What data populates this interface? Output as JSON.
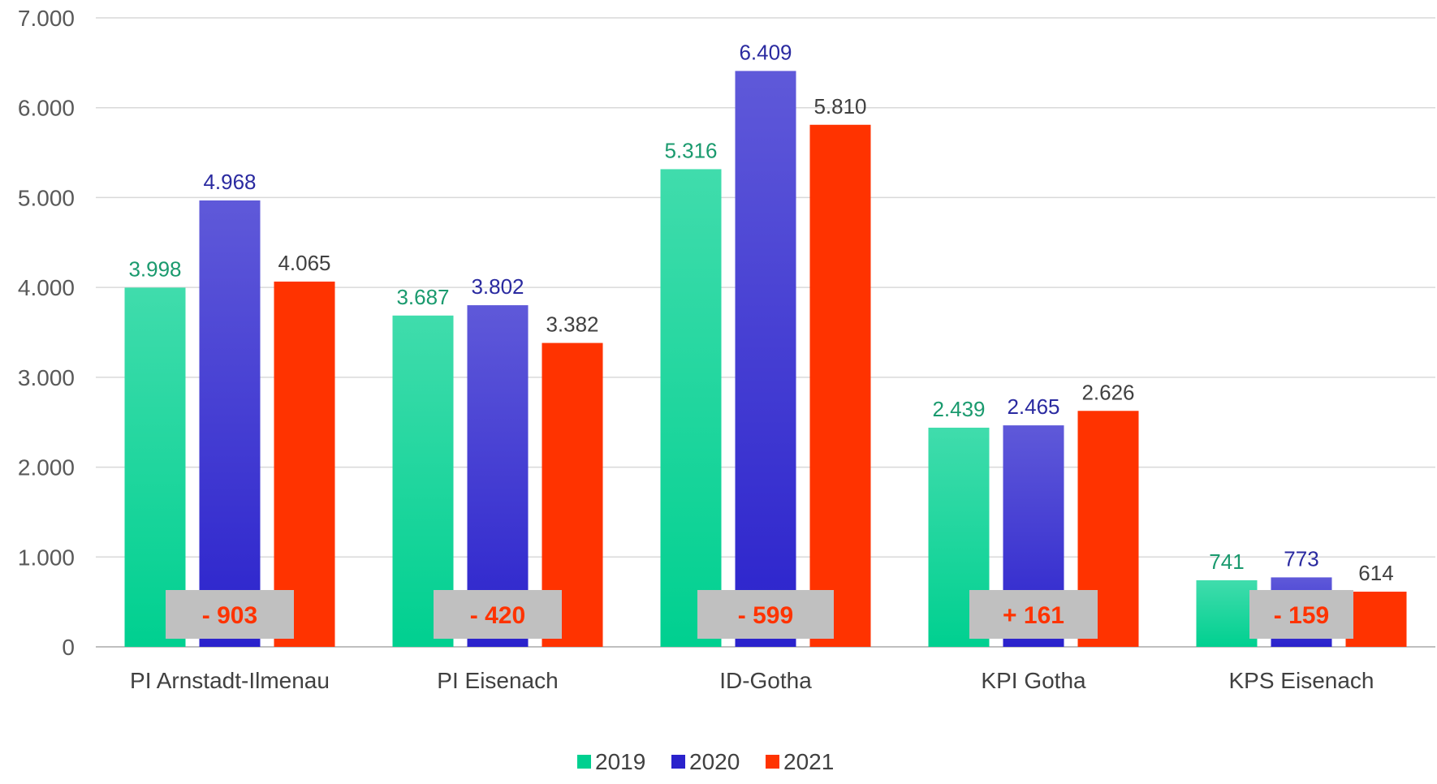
{
  "chart_data": {
    "type": "bar",
    "categories": [
      "PI Arnstadt-Ilmenau",
      "PI Eisenach",
      "ID-Gotha",
      "KPI Gotha",
      "KPS Eisenach"
    ],
    "series": [
      {
        "name": "2019",
        "values": [
          3998,
          3687,
          5316,
          2439,
          741
        ],
        "labels": [
          "3.998",
          "3.687",
          "5.316",
          "2.439",
          "741"
        ],
        "color": "#00d090",
        "label_color": "#1a9a6e"
      },
      {
        "name": "2020",
        "values": [
          4968,
          3802,
          6409,
          2465,
          773
        ],
        "labels": [
          "4.968",
          "3.802",
          "6.409",
          "2.465",
          "773"
        ],
        "color": "#2a22cc",
        "label_color": "#2a2aa0"
      },
      {
        "name": "2021",
        "values": [
          4065,
          3382,
          5810,
          2626,
          614
        ],
        "labels": [
          "4.065",
          "3.382",
          "5.810",
          "2.626",
          "614"
        ],
        "color": "#ff3300",
        "label_color": "#404040"
      }
    ],
    "differences": [
      "- 903",
      "- 420",
      "- 599",
      "+ 161",
      "- 159"
    ],
    "yticks": [
      0,
      1000,
      2000,
      3000,
      4000,
      5000,
      6000,
      7000
    ],
    "ytick_labels": [
      "0",
      "1.000",
      "2.000",
      "3.000",
      "4.000",
      "5.000",
      "6.000",
      "7.000"
    ],
    "ylim": [
      0,
      7000
    ],
    "grid": true,
    "legend_position": "bottom",
    "colors": {
      "difference_box": "#c0c0c0",
      "difference_text": "#ff3300",
      "grid": "#d9d9d9"
    }
  }
}
